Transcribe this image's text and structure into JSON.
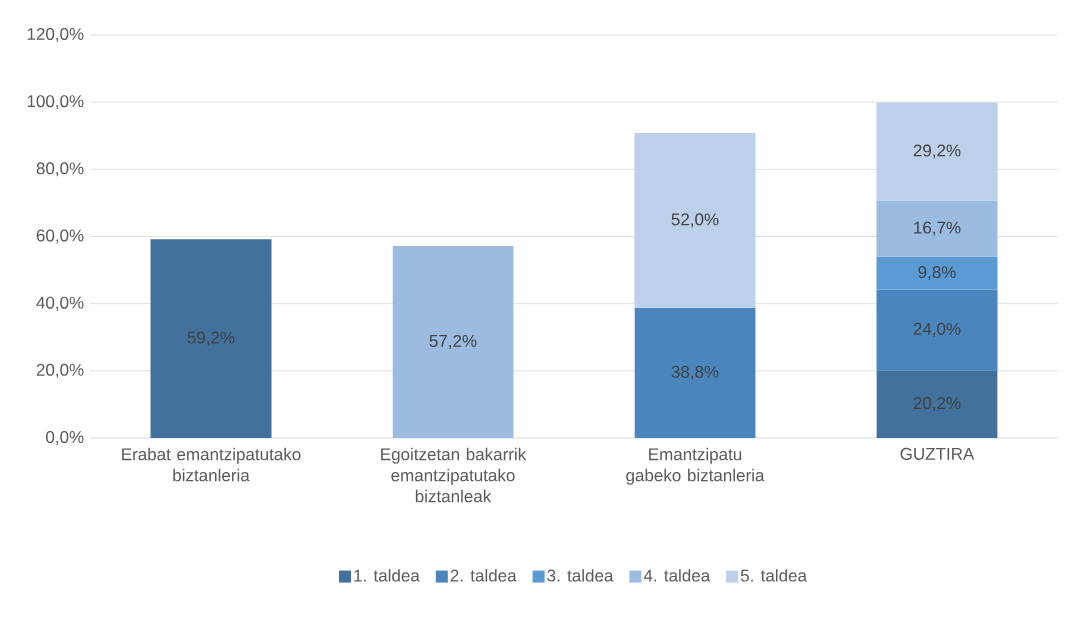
{
  "chart_data": {
    "type": "bar",
    "stacked": true,
    "categories": [
      "Erabat emantzipatutako biztanleria",
      "Egoitzetan bakarrik emantzipatutako biztanleak",
      "Emantzipatu gabeko biztanleria",
      "GUZTIRA"
    ],
    "series": [
      {
        "name": "1. taldea",
        "color": "#41719c",
        "values": [
          59.2,
          null,
          null,
          20.2
        ],
        "value_labels": [
          "59,2%",
          null,
          null,
          "20,2%"
        ]
      },
      {
        "name": "2. taldea",
        "color": "#4a86bd",
        "values": [
          null,
          null,
          38.8,
          24.0
        ],
        "value_labels": [
          null,
          null,
          "38,8%",
          "24,0%"
        ]
      },
      {
        "name": "3. taldea",
        "color": "#5b9bd5",
        "values": [
          null,
          null,
          null,
          9.8
        ],
        "value_labels": [
          null,
          null,
          null,
          "9,8%"
        ]
      },
      {
        "name": "4. taldea",
        "color": "#9bbbe0",
        "values": [
          null,
          57.2,
          null,
          16.7
        ],
        "value_labels": [
          null,
          "57,2%",
          null,
          "16,7%"
        ]
      },
      {
        "name": "5. taldea",
        "color": "#bdd0ea",
        "values": [
          null,
          null,
          52.0,
          29.2
        ],
        "value_labels": [
          null,
          null,
          "52,0%",
          "29,2%"
        ]
      }
    ],
    "ylim": [
      0,
      120
    ],
    "yticks": [
      {
        "value": 0,
        "label": "0,0%"
      },
      {
        "value": 20,
        "label": "20,0%"
      },
      {
        "value": 40,
        "label": "40,0%"
      },
      {
        "value": 60,
        "label": "60,0%"
      },
      {
        "value": 80,
        "label": "80,0%"
      },
      {
        "value": 100,
        "label": "100,0%"
      },
      {
        "value": 120,
        "label": "120,0%"
      }
    ],
    "grid": "y",
    "legend": "bottom"
  }
}
